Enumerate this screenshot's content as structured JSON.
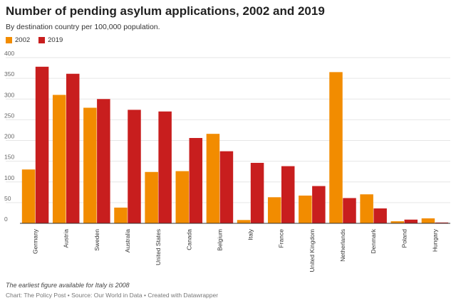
{
  "title": "Number of pending asylum applications, 2002 and 2019",
  "subtitle": "By destination country per 100,000 population.",
  "footnote": "The earliest figure available for Italy is 2008",
  "credit": "Chart: The Policy Post • Source: Our World in Data • Created with Datawrapper",
  "colors": {
    "2002": "#f28c00",
    "2019": "#c81e1e",
    "grid": "#e6e6e6",
    "axis": "#333333"
  },
  "chart_data": {
    "type": "bar",
    "title": "Number of pending asylum applications, 2002 and 2019",
    "subtitle": "By destination country per 100,000 population.",
    "categories": [
      "Germany",
      "Austria",
      "Sweden",
      "Australia",
      "United States",
      "Canada",
      "Belgium",
      "Italy",
      "France",
      "United Kingdom",
      "Netherlands",
      "Denmark",
      "Poland",
      "Hungary"
    ],
    "series": [
      {
        "name": "2002",
        "values": [
          130,
          310,
          279,
          38,
          124,
          126,
          216,
          8,
          63,
          67,
          365,
          70,
          5,
          12
        ]
      },
      {
        "name": "2019",
        "values": [
          378,
          361,
          300,
          274,
          270,
          206,
          174,
          146,
          138,
          90,
          61,
          36,
          9,
          2
        ]
      }
    ],
    "ylim": [
      0,
      400
    ],
    "yticks": [
      0,
      50,
      100,
      150,
      200,
      250,
      300,
      350,
      400
    ],
    "grid": true,
    "legend_position": "top-left"
  }
}
